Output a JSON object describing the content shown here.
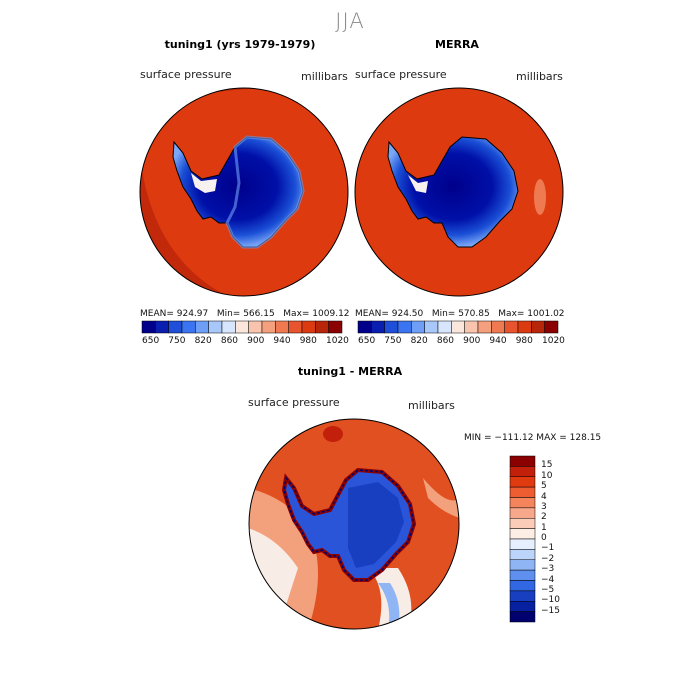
{
  "season": "JJA",
  "panels": [
    {
      "id": "model",
      "title": "tuning1 (yrs 1979-1979)",
      "left_label": "surface pressure",
      "right_label": "millibars",
      "stats": {
        "mean": "MEAN= 924.97",
        "min": "Min= 566.15",
        "max": "Max= 1009.12"
      }
    },
    {
      "id": "obs",
      "title": "MERRA",
      "left_label": "surface pressure",
      "right_label": "millibars",
      "stats": {
        "mean": "MEAN= 924.50",
        "min": "Min= 570.85",
        "max": "Max= 1001.02"
      }
    }
  ],
  "abs_colorbar": {
    "colors": [
      "#00008b",
      "#0a1fb0",
      "#1f4fd8",
      "#3b74f0",
      "#6f9ef6",
      "#a8c8fa",
      "#d7e6fd",
      "#fbe6dc",
      "#f8c4ae",
      "#f4a07e",
      "#ef7a52",
      "#e8542e",
      "#dc3a10",
      "#b8260a",
      "#8b0000"
    ],
    "tick_labels": [
      "650",
      "750",
      "820",
      "860",
      "900",
      "940",
      "980",
      "1020"
    ]
  },
  "diff": {
    "title": "tuning1 - MERRA",
    "left_label": "surface pressure",
    "right_label": "millibars",
    "minmax": "MIN = −111.12 MAX = 128.15",
    "colors": [
      "#8b0000",
      "#c2200a",
      "#e03a10",
      "#ee5c32",
      "#f4845c",
      "#f8a88a",
      "#fbcdb9",
      "#fdeee5",
      "#e6effd",
      "#bcd4fa",
      "#8fb5f5",
      "#5f8fef",
      "#3167e3",
      "#173fc0",
      "#0620a0",
      "#00006f"
    ],
    "tick_labels": [
      "15",
      "10",
      "5",
      "4",
      "3",
      "2",
      "1",
      "0",
      "−1",
      "−2",
      "−3",
      "−4",
      "−5",
      "−10",
      "−15"
    ]
  },
  "map_colors": {
    "ocean": "#de3a10",
    "ocean_high": "#c2280a",
    "ice_low": "#0000a0",
    "ice_mid": "#1a4fd6",
    "ice_edge": "#6f9ef6",
    "coast_white": "#f7f2f0",
    "diff_bg": "#e05020",
    "diff_light": "#f3a07c",
    "diff_white": "#f8ece6",
    "diff_blue": "#2a55d8",
    "diff_darkblue": "#0a1a90",
    "diff_red": "#8b0000"
  }
}
